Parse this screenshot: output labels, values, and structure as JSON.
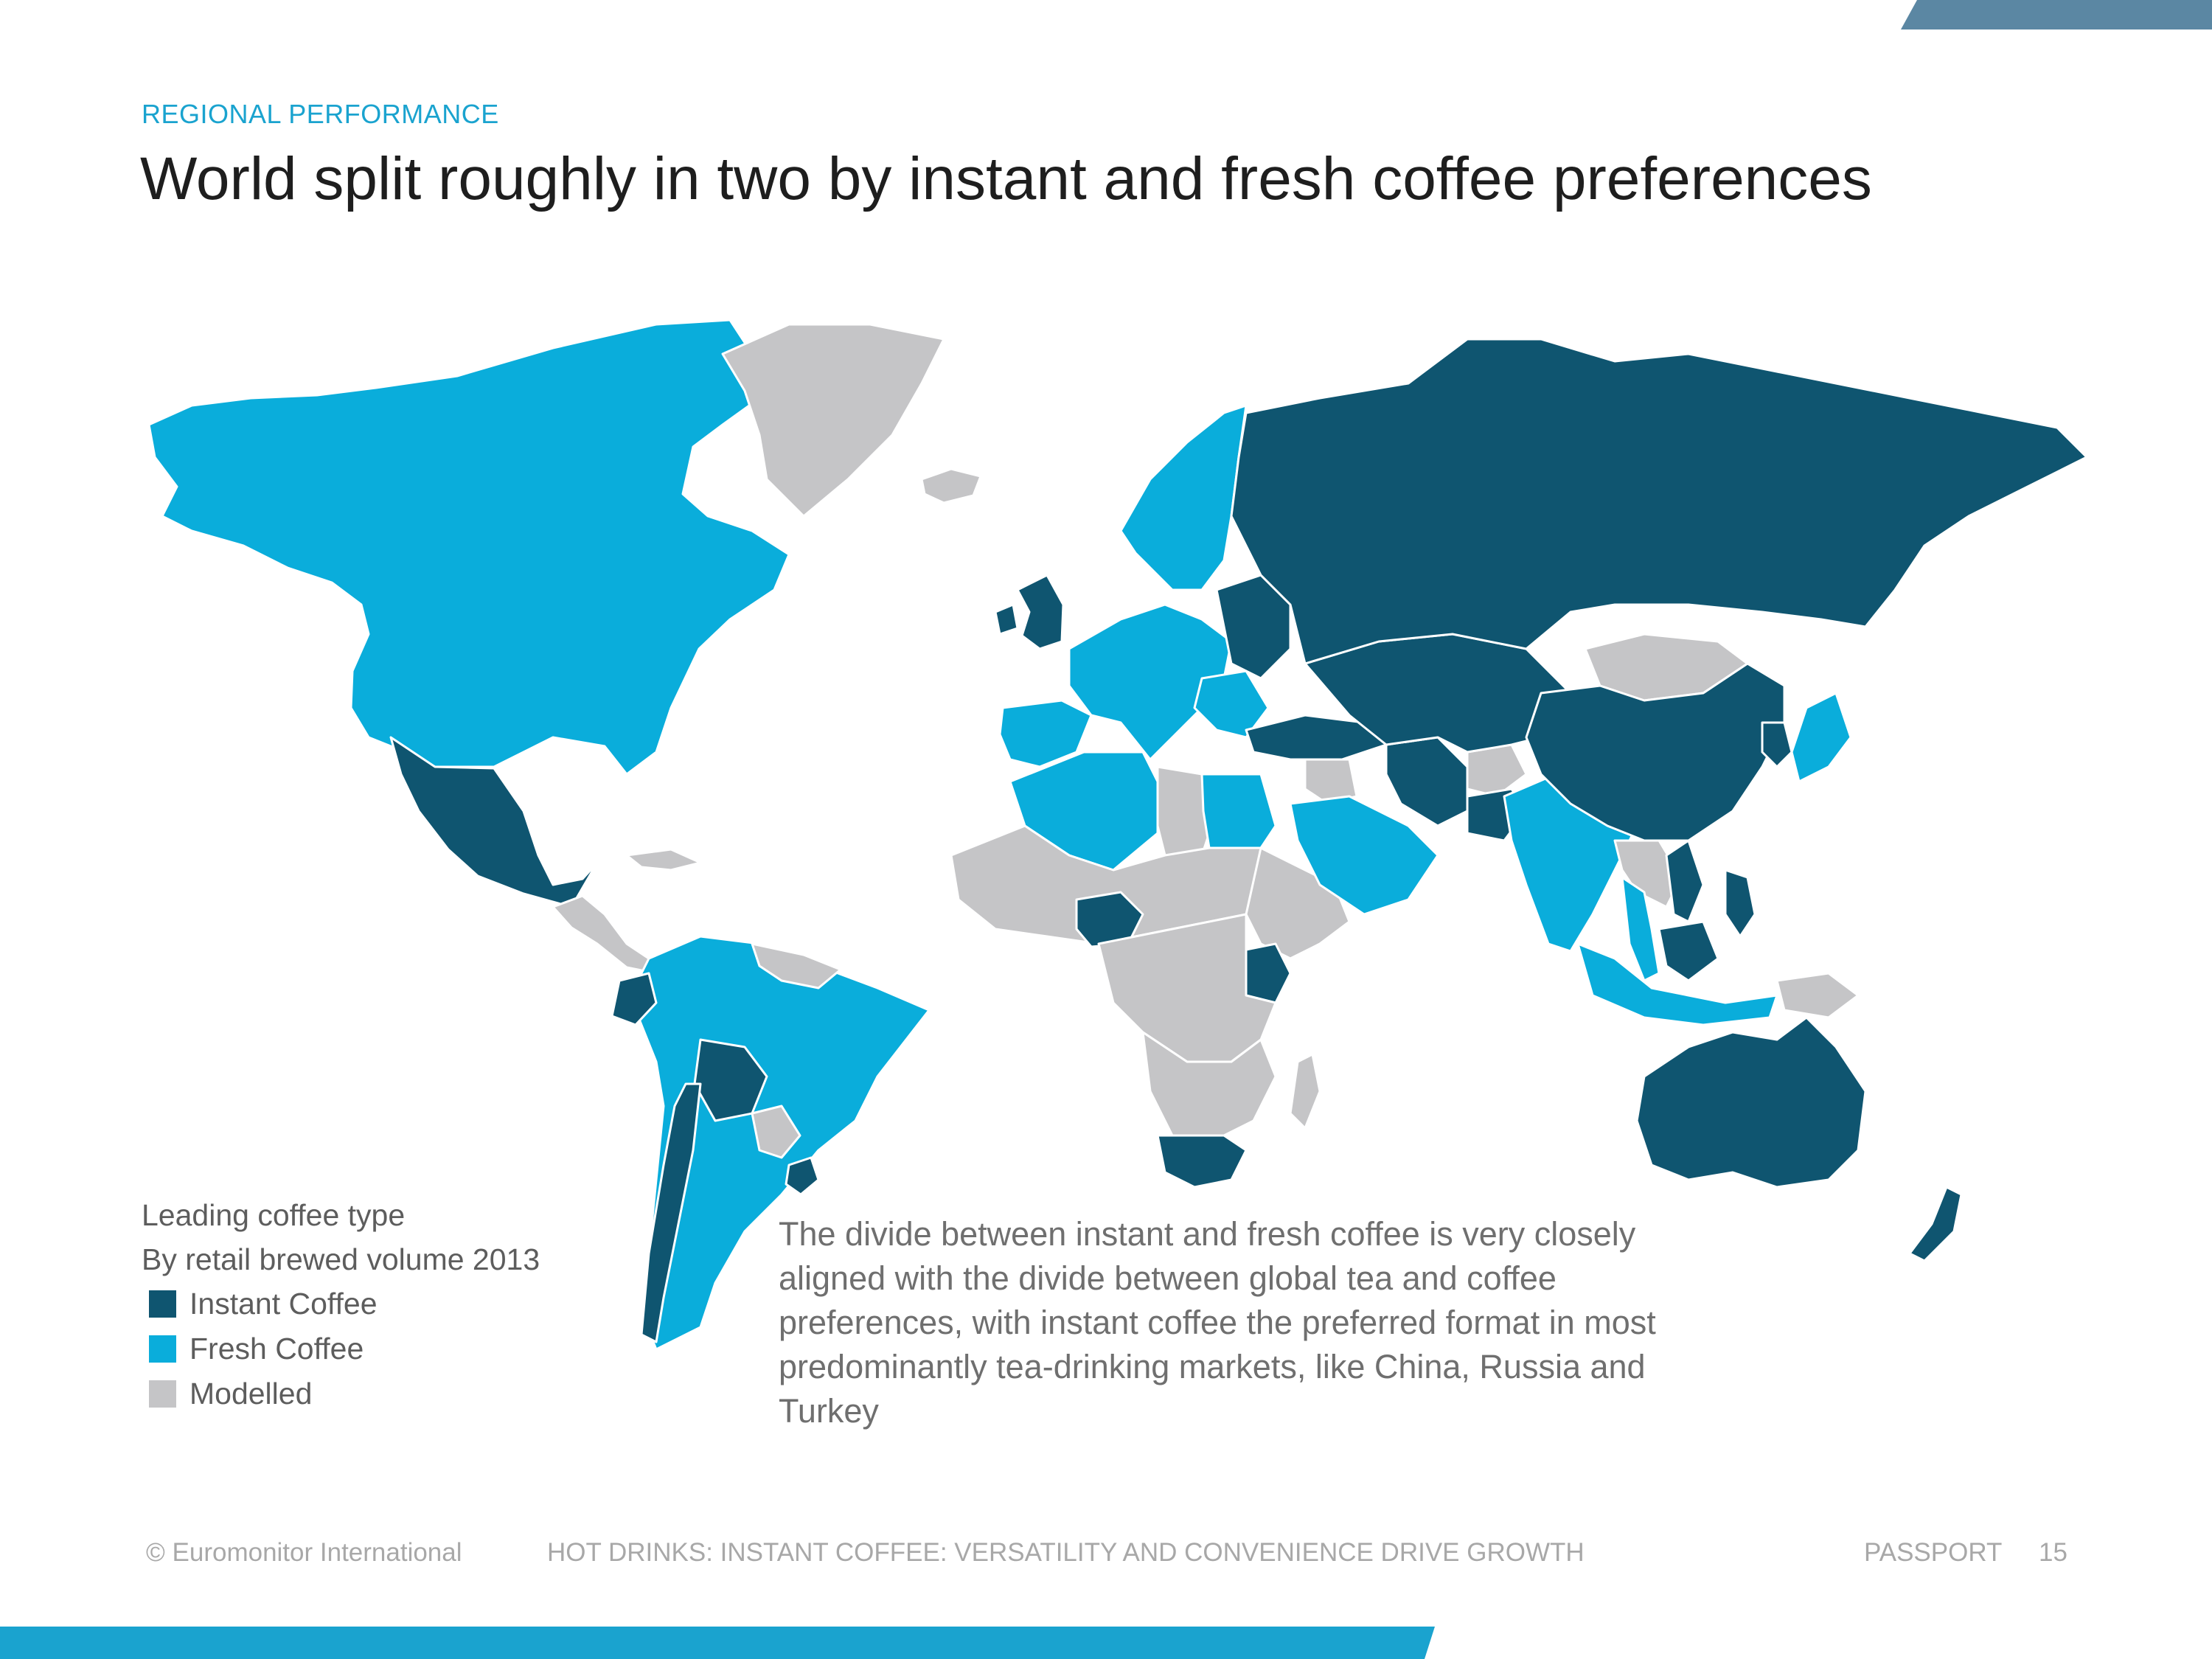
{
  "header": {
    "eyebrow": "REGIONAL PERFORMANCE",
    "title": "World split roughly in two by instant and fresh coffee preferences"
  },
  "colors": {
    "instant": "#0f5570",
    "fresh": "#0aaddb",
    "modelled": "#c5c5c7",
    "no_data": "#ffffff",
    "accent_top": "#5b87a3",
    "accent_bottom": "#1aa3cf"
  },
  "legend": {
    "title": "Leading coffee type",
    "subtitle": "By retail brewed volume 2013",
    "items": [
      {
        "label": "Instant Coffee",
        "category": "instant"
      },
      {
        "label": "Fresh Coffee",
        "category": "fresh"
      },
      {
        "label": "Modelled",
        "category": "modelled"
      }
    ]
  },
  "note": "The divide between instant and fresh coffee is very closely aligned with the divide between global tea and coffee preferences, with instant coffee the preferred format in most predominantly tea-drinking markets, like China, Russia and Turkey",
  "footer": {
    "copyright": "© Euromonitor International",
    "report": "HOT DRINKS: INSTANT COFFEE: VERSATILITY AND CONVENIENCE DRIVE GROWTH",
    "brand": "PASSPORT",
    "page": "15"
  },
  "map": {
    "region_categories": {
      "north-america": "fresh",
      "greenland": "modelled",
      "iceland": "modelled",
      "mexico": "instant",
      "central-america": "modelled",
      "caribbean": "modelled",
      "south-america": "fresh",
      "ecuador": "instant",
      "bolivia": "instant",
      "paraguay": "modelled",
      "uruguay": "instant",
      "chile": "instant",
      "guianas": "modelled",
      "uk-ireland": "instant",
      "iberia": "fresh",
      "western-europe": "fresh",
      "scandinavia": "fresh",
      "eastern-europe": "instant",
      "balkans": "fresh",
      "turkey": "instant",
      "caucasus-central-asia": "instant",
      "russia": "instant",
      "north-africa-west": "fresh",
      "libya": "modelled",
      "egypt": "fresh",
      "arabia": "fresh",
      "levant": "modelled",
      "iran": "instant",
      "afghanistan": "modelled",
      "pakistan": "instant",
      "india": "fresh",
      "sahel-west-africa": "modelled",
      "nigeria": "instant",
      "central-africa": "modelled",
      "east-africa": "modelled",
      "kenya": "instant",
      "southern-africa": "modelled",
      "south-africa": "instant",
      "madagascar": "modelled",
      "mongolia": "modelled",
      "china": "instant",
      "korea": "instant",
      "japan": "fresh",
      "indochina": "modelled",
      "vietnam": "instant",
      "thailand-malaysia": "fresh",
      "philippines": "instant",
      "indonesia": "fresh",
      "borneo": "instant",
      "new-guinea": "modelled",
      "australia": "instant",
      "new-zealand": "instant"
    }
  }
}
